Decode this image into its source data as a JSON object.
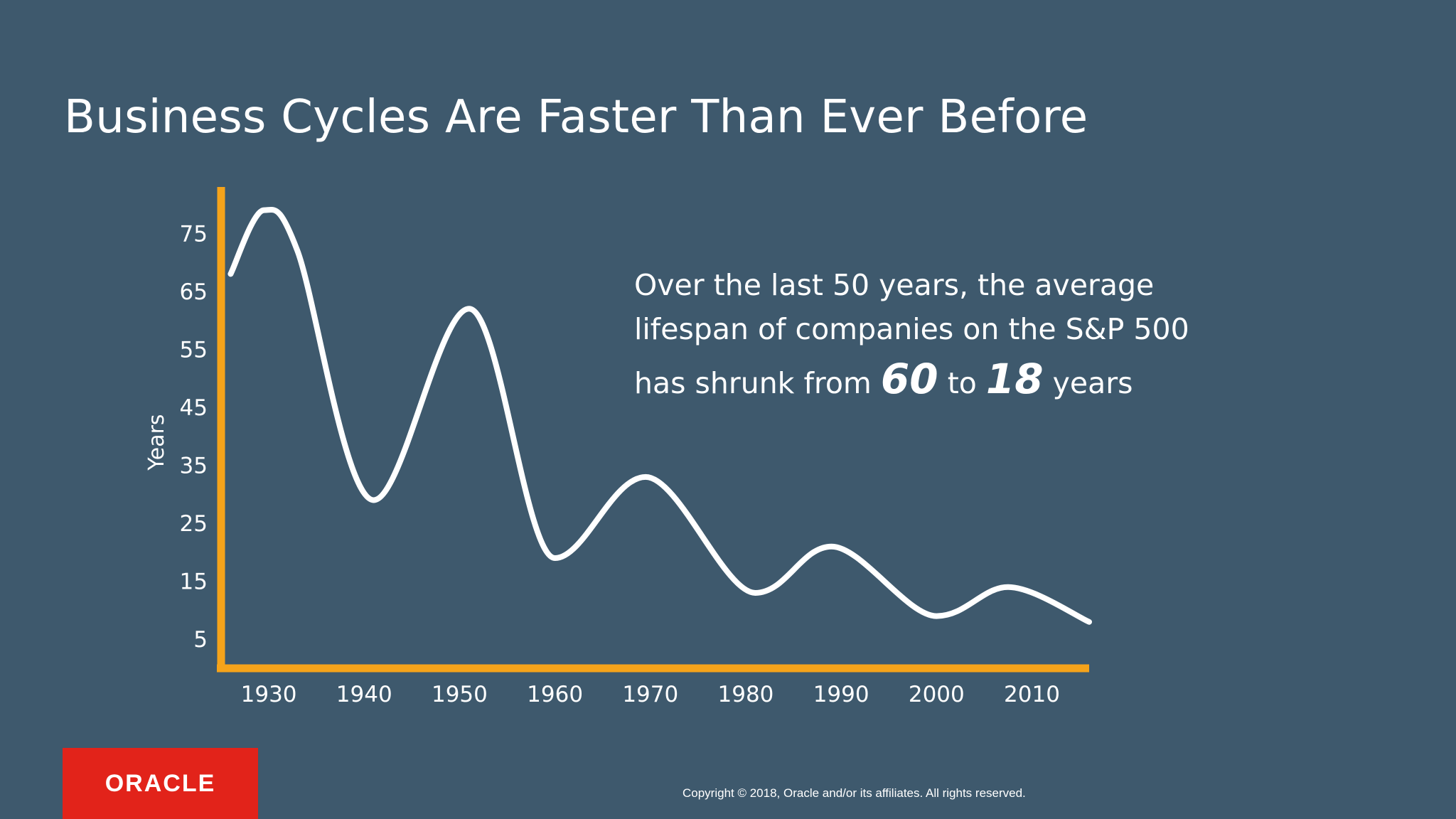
{
  "slide": {
    "title": "Business Cycles Are Faster Than Ever Before"
  },
  "callout": {
    "line1": "Over the last 50 years, the average",
    "line2": "lifespan of companies on the S&P 500",
    "line3_prefix": "has shrunk from",
    "from_value": "60",
    "connector": "to",
    "to_value": "18",
    "line3_suffix": "years"
  },
  "footer": {
    "logo": "ORACLE",
    "copyright": "Copyright © 2018, Oracle and/or its affiliates. All rights reserved."
  },
  "colors": {
    "background": "#3e596d",
    "axis": "#f5a31a",
    "line": "#ffffff",
    "logo_bg": "#e2231a"
  },
  "chart_data": {
    "type": "line",
    "title": "",
    "xlabel": "",
    "ylabel": "Years",
    "x_ticks": [
      1930,
      1940,
      1950,
      1960,
      1970,
      1980,
      1990,
      2000,
      2010
    ],
    "y_ticks": [
      5,
      15,
      25,
      35,
      45,
      55,
      65,
      75
    ],
    "xlim": [
      1925,
      2016
    ],
    "ylim": [
      0,
      83
    ],
    "grid": false,
    "legend": "none",
    "series": [
      {
        "name": "",
        "x": [
          1926,
          1929.5,
          1933,
          1941,
          1951,
          1960,
          1969.5,
          1981,
          1989,
          2000,
          2007.5,
          2016
        ],
        "y": [
          68,
          79,
          72,
          29,
          62,
          19,
          33,
          13,
          21,
          9,
          14,
          8
        ]
      }
    ]
  }
}
